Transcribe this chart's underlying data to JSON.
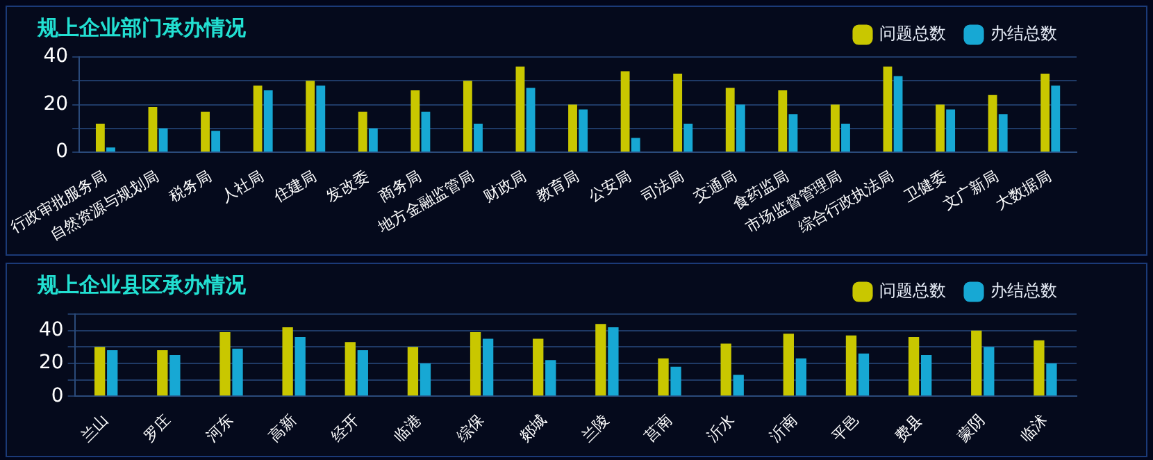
{
  "chart_data": [
    {
      "type": "bar",
      "title": "规上企业部门承办情况",
      "categories": [
        "行政审批服务局",
        "自然资源与规划局",
        "税务局",
        "人社局",
        "住建局",
        "发改委",
        "商务局",
        "地方金融监管局",
        "财政局",
        "教育局",
        "公安局",
        "司法局",
        "交通局",
        "食药监局",
        "市场监督管理局",
        "综合行政执法局",
        "卫健委",
        "文广新局",
        "大数据局"
      ],
      "series": [
        {
          "name": "问题总数",
          "color": "#c9c700",
          "values": [
            12,
            19,
            17,
            28,
            30,
            17,
            26,
            30,
            36,
            20,
            34,
            33,
            27,
            26,
            20,
            36,
            20,
            24,
            33
          ]
        },
        {
          "name": "办结总数",
          "color": "#17a8d4",
          "values": [
            2,
            10,
            9,
            26,
            28,
            10,
            17,
            12,
            27,
            18,
            6,
            12,
            20,
            16,
            12,
            32,
            18,
            16,
            28
          ]
        }
      ],
      "ylim": [
        0,
        40
      ],
      "yticks": [
        0,
        {
          "value": 10,
          "label": null
        },
        20,
        {
          "value": 30,
          "label": null
        },
        40
      ],
      "grid": "y",
      "legend": "top right"
    },
    {
      "type": "bar",
      "title": "规上企业县区承办情况",
      "categories": [
        "兰山",
        "罗庄",
        "河东",
        "高新",
        "经开",
        "临港",
        "综保",
        "郯城",
        "兰陵",
        "莒南",
        "沂水",
        "沂南",
        "平邑",
        "费县",
        "蒙阴",
        "临沭"
      ],
      "series": [
        {
          "name": "问题总数",
          "color": "#c9c700",
          "values": [
            30,
            28,
            39,
            42,
            33,
            30,
            39,
            35,
            44,
            23,
            32,
            38,
            37,
            36,
            40,
            34
          ]
        },
        {
          "name": "办结总数",
          "color": "#17a8d4",
          "values": [
            28,
            25,
            29,
            36,
            28,
            20,
            35,
            22,
            42,
            18,
            13,
            23,
            26,
            25,
            30,
            20
          ]
        }
      ],
      "ylim": [
        0,
        50
      ],
      "yticks": [
        0,
        {
          "value": 10,
          "label": null
        },
        20,
        {
          "value": 30,
          "label": null
        },
        40,
        {
          "value": 50,
          "label": null
        }
      ],
      "grid": "y",
      "legend": "top right"
    }
  ]
}
